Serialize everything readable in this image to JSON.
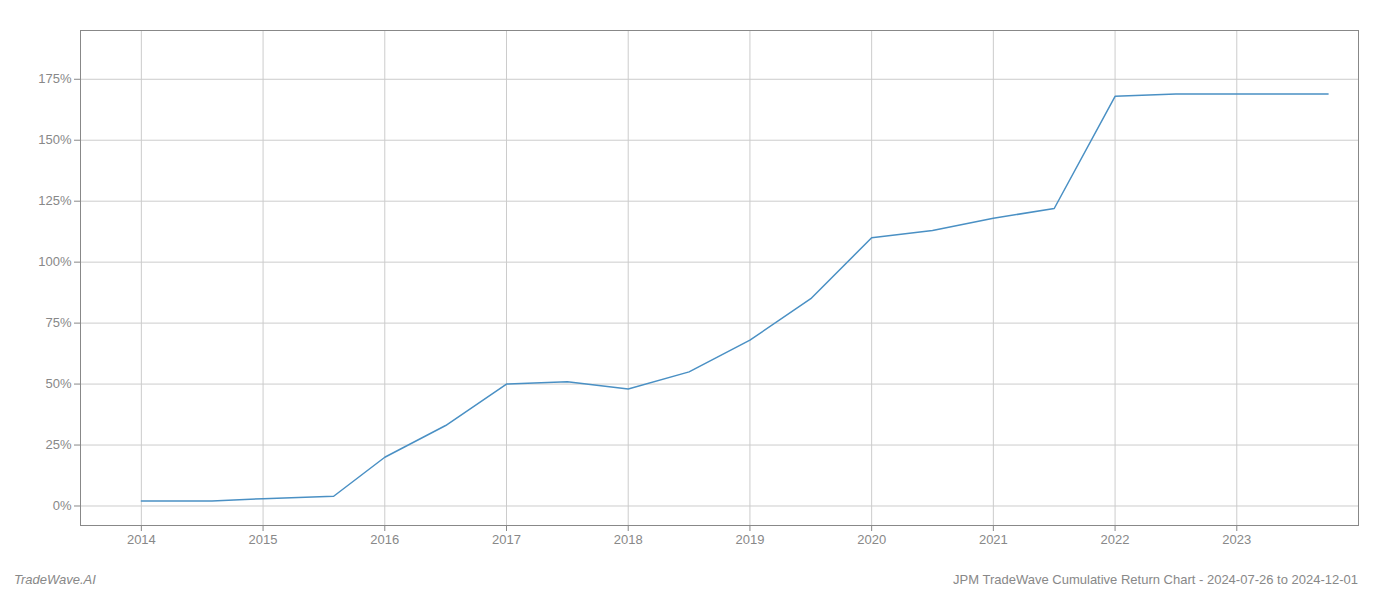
{
  "chart_data": {
    "type": "line",
    "title": "JPM TradeWave Cumulative Return Chart - 2024-07-26 to 2024-12-01",
    "annotations": [
      "TradeWave.AI"
    ],
    "x": [
      2014,
      2014.58,
      2015,
      2015.58,
      2016,
      2016.5,
      2017,
      2017.5,
      2018,
      2018.5,
      2019,
      2019.5,
      2020,
      2020.5,
      2021,
      2021.5,
      2022,
      2022.5,
      2023,
      2023.75
    ],
    "values": [
      2,
      2,
      3,
      4,
      20,
      33,
      50,
      51,
      48,
      55,
      68,
      85,
      110,
      113,
      118,
      122,
      168,
      169,
      169,
      169
    ],
    "color": "#4a90c4",
    "xlim": [
      2013.5,
      2024.0
    ],
    "xticks": [
      2014,
      2015,
      2016,
      2017,
      2018,
      2019,
      2020,
      2021,
      2022,
      2023
    ],
    "ylim": [
      -8,
      195
    ],
    "yticks": [
      {
        "value": 0,
        "label": "0%"
      },
      {
        "value": 25,
        "label": "25%"
      },
      {
        "value": 50,
        "label": "50%"
      },
      {
        "value": 75,
        "label": "75%"
      },
      {
        "value": 100,
        "label": "100%"
      },
      {
        "value": 125,
        "label": "125%"
      },
      {
        "value": 150,
        "label": "150%"
      },
      {
        "value": 175,
        "label": "175%"
      }
    ],
    "grid": true
  }
}
